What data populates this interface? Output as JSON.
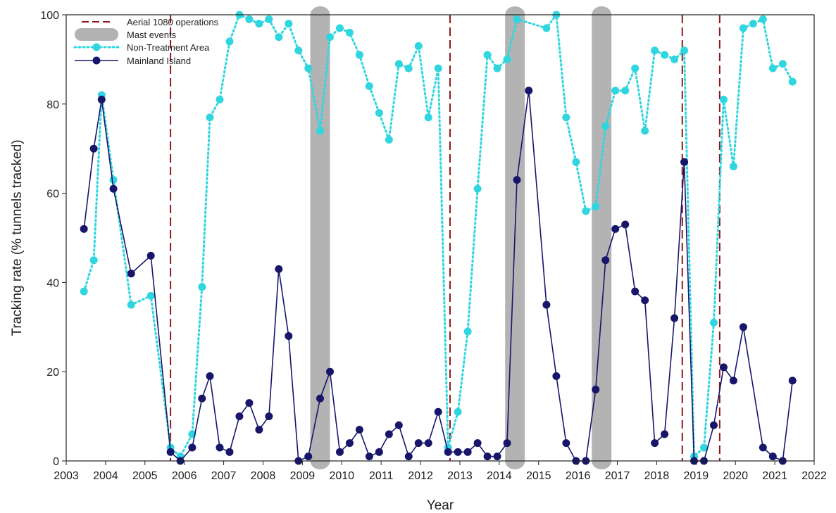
{
  "chart_data": {
    "type": "line",
    "title": "",
    "xlabel": "Year",
    "ylabel": "Tracking rate (% tunnels tracked)",
    "xlim": [
      2003,
      2022
    ],
    "ylim": [
      0,
      100
    ],
    "x_ticks": [
      2003,
      2004,
      2005,
      2006,
      2007,
      2008,
      2009,
      2010,
      2011,
      2012,
      2013,
      2014,
      2015,
      2016,
      2017,
      2018,
      2019,
      2020,
      2021,
      2022
    ],
    "y_ticks": [
      0,
      20,
      40,
      60,
      80,
      100
    ],
    "grid": false,
    "legend_position": "top-left",
    "legend": [
      {
        "label": "Aerial 1080 operations",
        "kind": "dashed-line",
        "color": "#8b1a1a"
      },
      {
        "label": "Mast events",
        "kind": "band",
        "color": "#b3b3b3"
      },
      {
        "label": "Non-Treatment Area",
        "kind": "dotted-line-markers",
        "color": "#2fd6e0"
      },
      {
        "label": "Mainland Island",
        "kind": "solid-line-markers",
        "color": "#17166a"
      }
    ],
    "aerial_1080_operations": [
      2005.65,
      2012.75,
      2018.65,
      2019.6
    ],
    "mast_events": [
      [
        2009.2,
        2009.7
      ],
      [
        2014.15,
        2014.65
      ],
      [
        2016.35,
        2016.85
      ]
    ],
    "series": [
      {
        "name": "Non-Treatment Area",
        "color": "#2fd6e0",
        "style": "dotted",
        "points": [
          [
            2003.45,
            38
          ],
          [
            2003.7,
            45
          ],
          [
            2003.9,
            82
          ],
          [
            2004.2,
            63
          ],
          [
            2004.65,
            35
          ],
          [
            2005.15,
            37
          ],
          [
            2005.65,
            3
          ],
          [
            2005.9,
            1
          ],
          [
            2006.2,
            6
          ],
          [
            2006.45,
            39
          ],
          [
            2006.65,
            77
          ],
          [
            2006.9,
            81
          ],
          [
            2007.15,
            94
          ],
          [
            2007.4,
            100
          ],
          [
            2007.65,
            99
          ],
          [
            2007.9,
            98
          ],
          [
            2008.15,
            99
          ],
          [
            2008.4,
            95
          ],
          [
            2008.65,
            98
          ],
          [
            2008.9,
            92
          ],
          [
            2009.15,
            88
          ],
          [
            2009.45,
            74
          ],
          [
            2009.7,
            95
          ],
          [
            2009.95,
            97
          ],
          [
            2010.2,
            96
          ],
          [
            2010.45,
            91
          ],
          [
            2010.7,
            84
          ],
          [
            2010.95,
            78
          ],
          [
            2011.2,
            72
          ],
          [
            2011.45,
            89
          ],
          [
            2011.7,
            88
          ],
          [
            2011.95,
            93
          ],
          [
            2012.2,
            77
          ],
          [
            2012.45,
            88
          ],
          [
            2012.7,
            3
          ],
          [
            2012.95,
            11
          ],
          [
            2013.2,
            29
          ],
          [
            2013.45,
            61
          ],
          [
            2013.7,
            91
          ],
          [
            2013.95,
            88
          ],
          [
            2014.2,
            90
          ],
          [
            2014.45,
            99
          ],
          [
            2015.2,
            97
          ],
          [
            2015.45,
            100
          ],
          [
            2015.7,
            77
          ],
          [
            2015.95,
            67
          ],
          [
            2016.2,
            56
          ],
          [
            2016.45,
            57
          ],
          [
            2016.7,
            75
          ],
          [
            2016.95,
            83
          ],
          [
            2017.2,
            83
          ],
          [
            2017.45,
            88
          ],
          [
            2017.7,
            74
          ],
          [
            2017.95,
            92
          ],
          [
            2018.2,
            91
          ],
          [
            2018.45,
            90
          ],
          [
            2018.7,
            92
          ],
          [
            2018.95,
            1
          ],
          [
            2019.2,
            3
          ],
          [
            2019.45,
            31
          ],
          [
            2019.7,
            81
          ],
          [
            2019.95,
            66
          ],
          [
            2020.2,
            97
          ],
          [
            2020.45,
            98
          ],
          [
            2020.7,
            99
          ],
          [
            2020.95,
            88
          ],
          [
            2021.2,
            89
          ],
          [
            2021.45,
            85
          ]
        ]
      },
      {
        "name": "Mainland Island",
        "color": "#17166a",
        "style": "solid",
        "points": [
          [
            2003.45,
            52
          ],
          [
            2003.7,
            70
          ],
          [
            2003.9,
            81
          ],
          [
            2004.2,
            61
          ],
          [
            2004.65,
            42
          ],
          [
            2005.15,
            46
          ],
          [
            2005.65,
            2
          ],
          [
            2005.9,
            0
          ],
          [
            2006.2,
            3
          ],
          [
            2006.45,
            14
          ],
          [
            2006.65,
            19
          ],
          [
            2006.9,
            3
          ],
          [
            2007.15,
            2
          ],
          [
            2007.4,
            10
          ],
          [
            2007.65,
            13
          ],
          [
            2007.9,
            7
          ],
          [
            2008.15,
            10
          ],
          [
            2008.4,
            43
          ],
          [
            2008.65,
            28
          ],
          [
            2008.9,
            0
          ],
          [
            2009.15,
            1
          ],
          [
            2009.45,
            14
          ],
          [
            2009.7,
            20
          ],
          [
            2009.95,
            2
          ],
          [
            2010.2,
            4
          ],
          [
            2010.45,
            7
          ],
          [
            2010.7,
            1
          ],
          [
            2010.95,
            2
          ],
          [
            2011.2,
            6
          ],
          [
            2011.45,
            8
          ],
          [
            2011.7,
            1
          ],
          [
            2011.95,
            4
          ],
          [
            2012.2,
            4
          ],
          [
            2012.45,
            11
          ],
          [
            2012.7,
            2
          ],
          [
            2012.95,
            2
          ],
          [
            2013.2,
            2
          ],
          [
            2013.45,
            4
          ],
          [
            2013.7,
            1
          ],
          [
            2013.95,
            1
          ],
          [
            2014.2,
            4
          ],
          [
            2014.45,
            63
          ],
          [
            2014.75,
            83
          ],
          [
            2015.2,
            35
          ],
          [
            2015.45,
            19
          ],
          [
            2015.7,
            4
          ],
          [
            2015.95,
            0
          ],
          [
            2016.2,
            0
          ],
          [
            2016.45,
            16
          ],
          [
            2016.7,
            45
          ],
          [
            2016.95,
            52
          ],
          [
            2017.2,
            53
          ],
          [
            2017.45,
            38
          ],
          [
            2017.7,
            36
          ],
          [
            2017.95,
            4
          ],
          [
            2018.2,
            6
          ],
          [
            2018.45,
            32
          ],
          [
            2018.7,
            67
          ],
          [
            2018.95,
            0
          ],
          [
            2019.2,
            0
          ],
          [
            2019.45,
            8
          ],
          [
            2019.7,
            21
          ],
          [
            2019.95,
            18
          ],
          [
            2020.2,
            30
          ],
          [
            2020.7,
            3
          ],
          [
            2020.95,
            1
          ],
          [
            2021.2,
            0
          ],
          [
            2021.45,
            18
          ]
        ]
      }
    ]
  }
}
